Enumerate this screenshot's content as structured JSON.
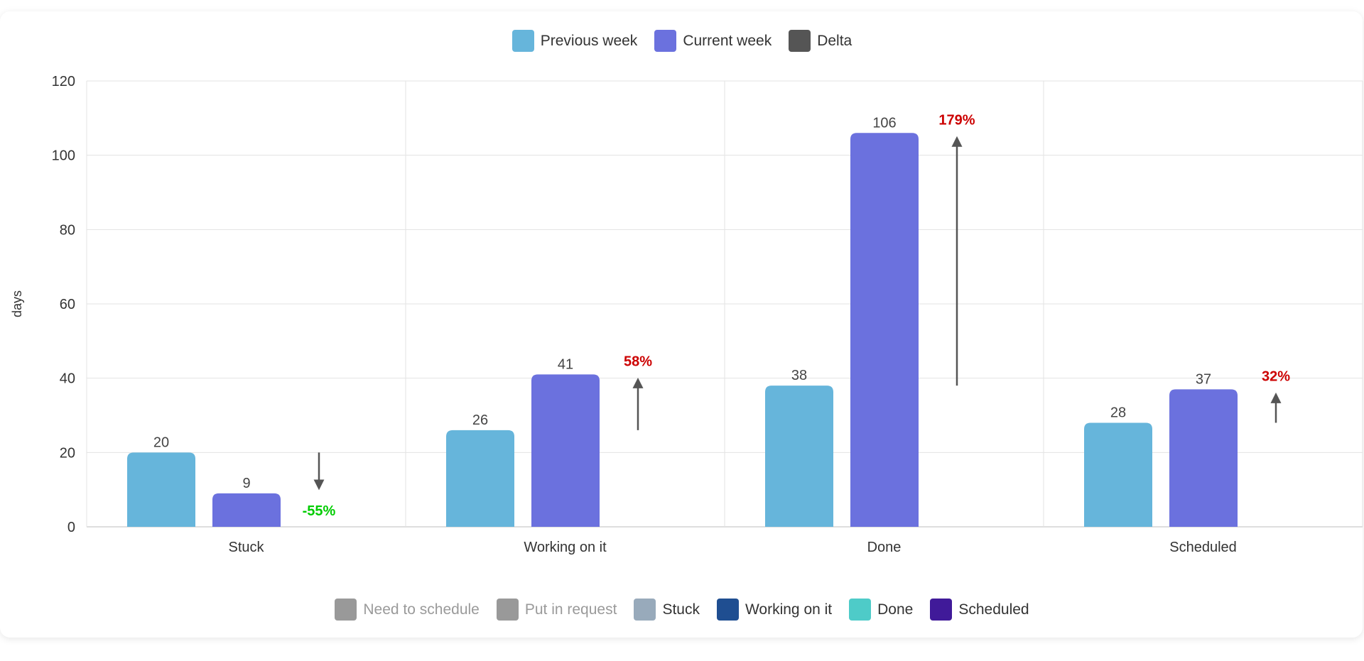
{
  "chart_data": {
    "type": "bar",
    "title": "",
    "xlabel": "",
    "ylabel": "days",
    "ylim": [
      0,
      120
    ],
    "yticks": [
      0,
      20,
      40,
      60,
      80,
      100,
      120
    ],
    "grid": true,
    "categories": [
      "Stuck",
      "Working on it",
      "Done",
      "Scheduled"
    ],
    "series": [
      {
        "name": "Previous week",
        "color": "#66B5DB",
        "values": [
          20,
          26,
          38,
          28
        ]
      },
      {
        "name": "Current week",
        "color": "#6B71DE",
        "values": [
          9,
          41,
          106,
          37
        ]
      }
    ],
    "delta": {
      "name": "Delta",
      "color": "#555555",
      "labels": [
        "-55%",
        "58%",
        "179%",
        "32%"
      ],
      "label_colors": [
        "#00CC00",
        "#CC0000",
        "#CC0000",
        "#CC0000"
      ]
    }
  },
  "legend_top": [
    {
      "label": "Previous week",
      "color": "#66B5DB",
      "muted": false
    },
    {
      "label": "Current week",
      "color": "#6B71DE",
      "muted": false
    },
    {
      "label": "Delta",
      "color": "#555555",
      "muted": false
    }
  ],
  "legend_bottom": [
    {
      "label": "Need to schedule",
      "color": "#999999",
      "muted": true
    },
    {
      "label": "Put in request",
      "color": "#999999",
      "muted": true
    },
    {
      "label": "Stuck",
      "color": "#98AABB",
      "muted": false
    },
    {
      "label": "Working on it",
      "color": "#1F4E91",
      "muted": false
    },
    {
      "label": "Done",
      "color": "#4ECBC8",
      "muted": false
    },
    {
      "label": "Scheduled",
      "color": "#401A99",
      "muted": false
    }
  ]
}
